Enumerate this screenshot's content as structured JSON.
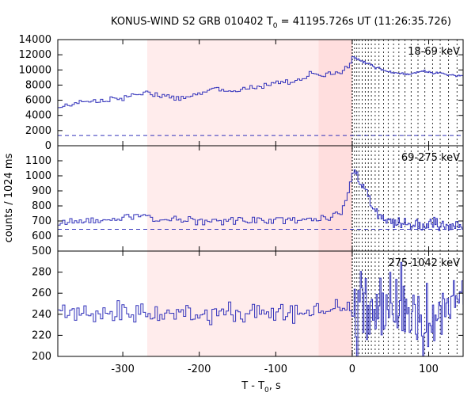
{
  "chart_data": {
    "type": "line",
    "title_main": "KONUS-WIND S2 GRB 010402 T",
    "title_sub": "0",
    "title_rest": " = 41195.726s UT (11:26:35.726)",
    "xlabel_main": "T - T",
    "xlabel_sub": "0",
    "xlabel_rest": ", s",
    "ylabel": "counts / 1024 ms",
    "xlim": [
      -385,
      145
    ],
    "xticks": [
      -300,
      -200,
      -100,
      0,
      100
    ],
    "x_tick_labels": [
      "-300",
      "-200",
      "-100",
      "0",
      "100"
    ],
    "colors": {
      "series": "#3333bb",
      "background_region": "#ffecec",
      "burst_region": "#ffdede"
    },
    "background_interval": [
      -268,
      -44
    ],
    "burst_interval": [
      -44,
      0
    ],
    "trigger_time": 0,
    "interval_boundaries": [
      0,
      3,
      6,
      9,
      13,
      17,
      21,
      25,
      30,
      35,
      41,
      47,
      54,
      61,
      69,
      77,
      86,
      95,
      105,
      115,
      126,
      137
    ],
    "panels": [
      {
        "label": "18-69 keV",
        "ylim": [
          0,
          14000
        ],
        "yticks": [
          0,
          2000,
          4000,
          6000,
          8000,
          10000,
          12000,
          14000
        ],
        "y_tick_labels": [
          "0",
          "2000",
          "4000",
          "6000",
          "8000",
          "10000",
          "12000",
          "14000"
        ],
        "background_level": 1350,
        "anchors": [
          [
            -385,
            5000
          ],
          [
            -370,
            5400
          ],
          [
            -350,
            5700
          ],
          [
            -330,
            6000
          ],
          [
            -300,
            6200
          ],
          [
            -280,
            6800
          ],
          [
            -270,
            7000
          ],
          [
            -250,
            6600
          ],
          [
            -220,
            6300
          ],
          [
            -200,
            6800
          ],
          [
            -180,
            7500
          ],
          [
            -160,
            7100
          ],
          [
            -140,
            7600
          ],
          [
            -120,
            7800
          ],
          [
            -100,
            8300
          ],
          [
            -80,
            8500
          ],
          [
            -60,
            9000
          ],
          [
            -55,
            9900
          ],
          [
            -48,
            9200
          ],
          [
            -30,
            9500
          ],
          [
            -15,
            9600
          ],
          [
            -5,
            10300
          ],
          [
            0,
            11400
          ],
          [
            5,
            11500
          ],
          [
            12,
            11200
          ],
          [
            20,
            10900
          ],
          [
            30,
            10300
          ],
          [
            50,
            9800
          ],
          [
            70,
            9400
          ],
          [
            90,
            9800
          ],
          [
            110,
            9600
          ],
          [
            130,
            9300
          ],
          [
            145,
            9200
          ]
        ],
        "noise": 180,
        "noise_after": 90
      },
      {
        "label": "69-275 keV",
        "ylim": [
          500,
          1200
        ],
        "yticks": [
          500,
          600,
          700,
          800,
          900,
          1000,
          1100
        ],
        "y_tick_labels": [
          "500",
          "600",
          "700",
          "800",
          "900",
          "1000",
          "1100"
        ],
        "background_level": 645,
        "anchors": [
          [
            -385,
            690
          ],
          [
            -330,
            710
          ],
          [
            -300,
            715
          ],
          [
            -290,
            725
          ],
          [
            -270,
            735
          ],
          [
            -250,
            710
          ],
          [
            -200,
            700
          ],
          [
            -150,
            705
          ],
          [
            -100,
            705
          ],
          [
            -60,
            710
          ],
          [
            -30,
            715
          ],
          [
            -15,
            760
          ],
          [
            -8,
            850
          ],
          [
            -3,
            950
          ],
          [
            0,
            1000
          ],
          [
            3,
            1050
          ],
          [
            8,
            980
          ],
          [
            15,
            930
          ],
          [
            22,
            840
          ],
          [
            30,
            760
          ],
          [
            40,
            720
          ],
          [
            55,
            700
          ],
          [
            80,
            680
          ],
          [
            110,
            680
          ],
          [
            145,
            665
          ]
        ],
        "noise": 14,
        "noise_after": 22
      },
      {
        "label": "275-1042 keV",
        "ylim": [
          200,
          300
        ],
        "yticks": [
          200,
          220,
          240,
          260,
          280
        ],
        "y_tick_labels": [
          "200",
          "220",
          "240",
          "260",
          "280"
        ],
        "background_level": null,
        "anchors": [
          [
            -385,
            242
          ],
          [
            -300,
            242
          ],
          [
            -200,
            242
          ],
          [
            -100,
            242
          ],
          [
            -50,
            243
          ],
          [
            0,
            243
          ],
          [
            50,
            243
          ],
          [
            100,
            244
          ],
          [
            145,
            244
          ]
        ],
        "noise": 5,
        "noise_after": 18
      }
    ]
  }
}
